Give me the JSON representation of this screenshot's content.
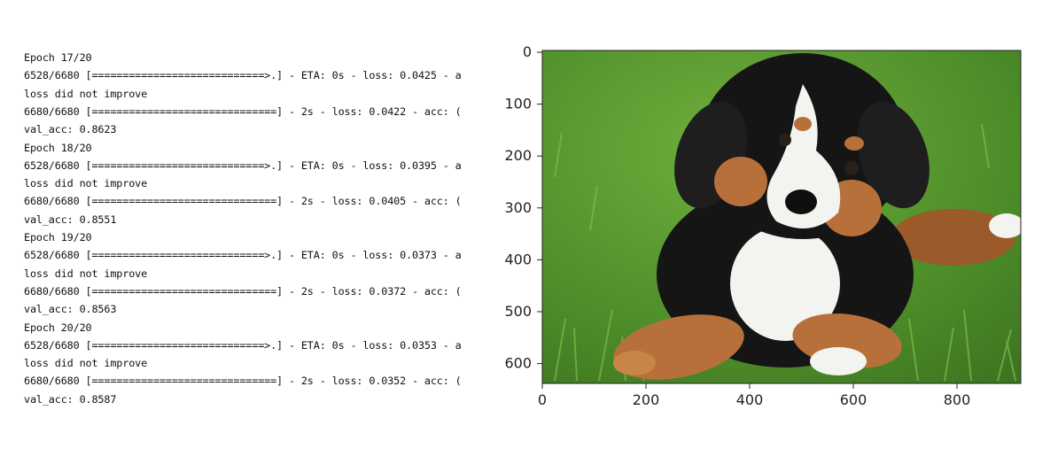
{
  "training_log": {
    "lines": [
      "Epoch 17/20",
      "6528/6680 [============================>.] - ETA: 0s - loss: 0.0425 - a",
      "loss did not improve",
      "6680/6680 [==============================] - 2s - loss: 0.0422 - acc: (",
      "val_acc: 0.8623",
      "Epoch 18/20",
      "6528/6680 [============================>.] - ETA: 0s - loss: 0.0395 - a",
      "loss did not improve",
      "6680/6680 [==============================] - 2s - loss: 0.0405 - acc: (",
      "val_acc: 0.8551",
      "Epoch 19/20",
      "6528/6680 [============================>.] - ETA: 0s - loss: 0.0373 - a",
      "loss did not improve",
      "6680/6680 [==============================] - 2s - loss: 0.0372 - acc: (",
      "val_acc: 0.8563",
      "Epoch 20/20",
      "6528/6680 [============================>.] - ETA: 0s - loss: 0.0353 - a",
      "loss did not improve",
      "6680/6680 [==============================] - 2s - loss: 0.0352 - acc: (",
      "val_acc: 0.8587"
    ]
  },
  "image_plot": {
    "subject": "bernese-mountain-dog-puppy-photo",
    "colors": {
      "grass": "#4f8f2a",
      "fur_black": "#151515",
      "fur_tan": "#b8703a",
      "fur_white": "#f3f3f0"
    },
    "x_ticks": [
      "0",
      "200",
      "400",
      "600",
      "800"
    ],
    "y_ticks": [
      "0",
      "100",
      "200",
      "300",
      "400",
      "500",
      "600"
    ]
  }
}
